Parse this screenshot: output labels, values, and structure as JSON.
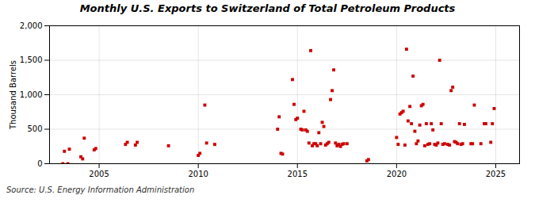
{
  "chart_data": {
    "type": "scatter",
    "title": "Monthly U.S. Exports to Switzerland of Total Petroleum Products",
    "ylabel": "Thousand Barrels",
    "source": "Source: U.S. Energy Information Administration",
    "color": "#cc0000",
    "marker": "square",
    "grid": true,
    "xlim": [
      2002.5,
      2026.2
    ],
    "xticks": [
      2005,
      2010,
      2015,
      2020,
      2025
    ],
    "ylim": [
      0,
      2000
    ],
    "yticks": [
      0,
      500,
      {
        "value": 1000,
        "label": "1,000"
      },
      {
        "value": 1500,
        "label": "1,500"
      },
      {
        "value": 2000,
        "label": "2,000"
      }
    ],
    "x": [
      2003.17,
      2003.25,
      2003.42,
      2003.5,
      2004.08,
      2004.17,
      2004.25,
      2004.75,
      2004.83,
      2006.33,
      2006.42,
      2006.83,
      2006.92,
      2008.5,
      2010.0,
      2010.08,
      2010.33,
      2010.42,
      2010.83,
      2014.0,
      2014.08,
      2014.17,
      2014.25,
      2014.75,
      2014.83,
      2014.92,
      2015.0,
      2015.17,
      2015.25,
      2015.33,
      2015.42,
      2015.5,
      2015.58,
      2015.67,
      2015.75,
      2015.83,
      2015.92,
      2016.0,
      2016.08,
      2016.17,
      2016.25,
      2016.33,
      2016.42,
      2016.5,
      2016.58,
      2016.67,
      2016.75,
      2016.83,
      2016.92,
      2017.0,
      2017.08,
      2017.17,
      2017.25,
      2017.33,
      2017.5,
      2018.5,
      2018.58,
      2020.0,
      2020.08,
      2020.17,
      2020.25,
      2020.33,
      2020.42,
      2020.5,
      2020.58,
      2020.67,
      2020.75,
      2020.83,
      2020.92,
      2021.0,
      2021.08,
      2021.17,
      2021.25,
      2021.33,
      2021.42,
      2021.5,
      2021.58,
      2021.67,
      2021.75,
      2021.83,
      2021.92,
      2022.0,
      2022.08,
      2022.17,
      2022.25,
      2022.33,
      2022.42,
      2022.58,
      2022.67,
      2022.75,
      2022.83,
      2022.92,
      2023.0,
      2023.08,
      2023.17,
      2023.25,
      2023.33,
      2023.42,
      2023.75,
      2023.83,
      2023.92,
      2024.25,
      2024.42,
      2024.5,
      2024.75,
      2024.83,
      2024.92
    ],
    "values": [
      0,
      180,
      0,
      210,
      100,
      70,
      370,
      200,
      220,
      280,
      310,
      270,
      310,
      260,
      120,
      150,
      850,
      300,
      280,
      500,
      680,
      150,
      140,
      1220,
      860,
      640,
      660,
      500,
      490,
      760,
      490,
      470,
      300,
      1640,
      260,
      290,
      290,
      260,
      450,
      290,
      600,
      540,
      270,
      290,
      310,
      930,
      1060,
      1360,
      300,
      260,
      280,
      250,
      280,
      290,
      290,
      40,
      60,
      380,
      280,
      720,
      740,
      760,
      270,
      1660,
      620,
      830,
      580,
      1270,
      470,
      290,
      330,
      560,
      840,
      860,
      260,
      580,
      280,
      290,
      580,
      490,
      280,
      270,
      300,
      1500,
      580,
      280,
      290,
      280,
      270,
      1060,
      1110,
      320,
      310,
      290,
      580,
      280,
      290,
      570,
      290,
      290,
      850,
      290,
      580,
      580,
      310,
      580,
      800
    ]
  }
}
